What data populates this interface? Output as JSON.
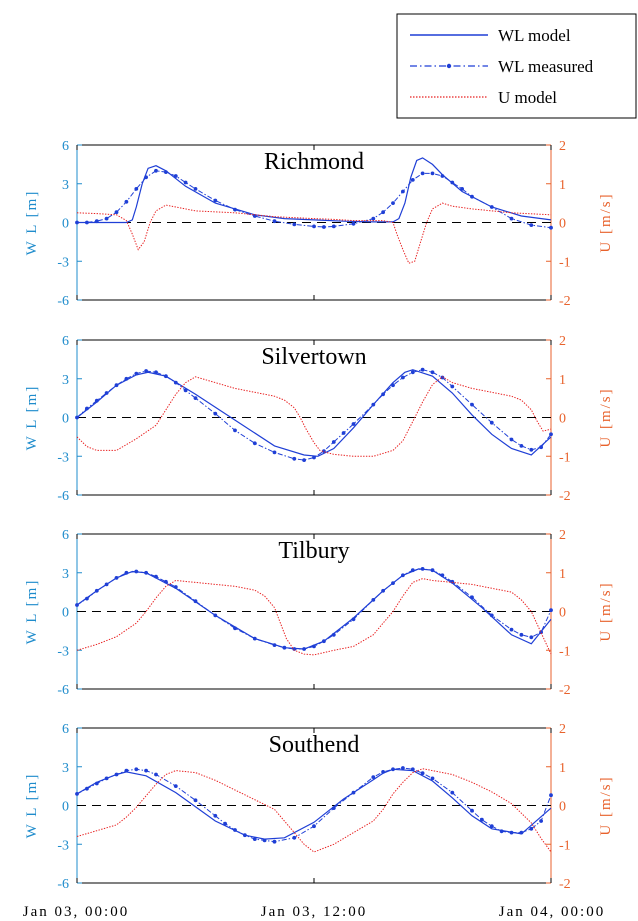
{
  "legend": {
    "wl_model": "WL model",
    "wl_measured": "WL measured",
    "u_model": "U model"
  },
  "colors": {
    "wl_axis": "#1f8ccc",
    "u_axis": "#e8622c",
    "wl_model": "#1f3fd6",
    "wl_measured": "#1f3fd6",
    "u_model": "#e82020",
    "zero_line": "#000000"
  },
  "x_tick_labels": [
    "Jan 03, 00:00",
    "Jan 03, 12:00",
    "Jan 04, 00:00"
  ],
  "chart_data": [
    {
      "type": "line",
      "title": "Richmond",
      "ylabel_left": "W L [m]",
      "ylabel_right": "U [m/s]",
      "ylim_left": [
        -6,
        6
      ],
      "yticks_left": [
        "6",
        "3",
        "0",
        "-3",
        "-6"
      ],
      "ylim_right": [
        -2,
        2
      ],
      "yticks_right": [
        "2",
        "1",
        "0",
        "-1",
        "-2"
      ],
      "xlim_hours": [
        0,
        24
      ],
      "series": [
        {
          "name": "WL model",
          "axis": "left",
          "x": [
            0,
            1.5,
            2.5,
            2.8,
            3.0,
            3.3,
            3.6,
            4.0,
            4.5,
            5.5,
            7,
            9,
            10.5,
            12,
            13.5,
            15,
            16.0,
            16.3,
            16.6,
            16.9,
            17.2,
            17.5,
            18.0,
            18.5,
            19.5,
            21,
            22.5,
            24
          ],
          "y": [
            0,
            0,
            0,
            0.2,
            1.2,
            3.0,
            4.2,
            4.4,
            4.0,
            2.8,
            1.5,
            0.6,
            0.3,
            0.2,
            0.1,
            0.05,
            0.05,
            0.3,
            1.5,
            3.5,
            4.8,
            5.0,
            4.5,
            3.7,
            2.4,
            1.2,
            0.5,
            0.2
          ]
        },
        {
          "name": "WL measured",
          "axis": "left",
          "x": [
            0,
            0.5,
            1,
            1.5,
            2,
            2.5,
            3,
            3.5,
            4,
            4.5,
            5,
            5.5,
            6,
            7,
            8,
            9,
            10,
            11,
            12,
            12.5,
            13,
            14,
            15,
            15.5,
            16,
            16.5,
            17,
            17.5,
            18,
            18.5,
            19,
            19.5,
            20,
            21,
            22,
            23,
            24
          ],
          "y": [
            0,
            0,
            0.1,
            0.3,
            0.8,
            1.6,
            2.6,
            3.5,
            4.0,
            3.9,
            3.6,
            3.1,
            2.6,
            1.7,
            1.0,
            0.5,
            0.1,
            -0.15,
            -0.3,
            -0.35,
            -0.3,
            -0.1,
            0.3,
            0.8,
            1.5,
            2.4,
            3.3,
            3.8,
            3.8,
            3.6,
            3.1,
            2.6,
            2.0,
            1.2,
            0.3,
            -0.2,
            -0.4
          ]
        },
        {
          "name": "U model",
          "axis": "right",
          "x": [
            0,
            1,
            2,
            2.5,
            2.8,
            3.1,
            3.4,
            3.7,
            4.0,
            4.5,
            5,
            6,
            8,
            10,
            12,
            13,
            14,
            15,
            15.5,
            16.0,
            16.2,
            16.5,
            16.8,
            17.1,
            17.4,
            17.7,
            18.0,
            18.5,
            19,
            20,
            22,
            24
          ],
          "y": [
            0.25,
            0.23,
            0.2,
            0.05,
            -0.3,
            -0.7,
            -0.5,
            0.0,
            0.3,
            0.45,
            0.4,
            0.3,
            0.25,
            0.15,
            0.1,
            0.08,
            0.05,
            0.05,
            0.05,
            0.0,
            -0.3,
            -0.7,
            -1.05,
            -1.0,
            -0.5,
            0.0,
            0.35,
            0.5,
            0.42,
            0.35,
            0.25,
            0.2
          ]
        }
      ]
    },
    {
      "type": "line",
      "title": "Silvertown",
      "ylabel_left": "W L [m]",
      "ylabel_right": "U [m/s]",
      "ylim_left": [
        -6,
        6
      ],
      "yticks_left": [
        "6",
        "3",
        "0",
        "-3",
        "-6"
      ],
      "ylim_right": [
        -2,
        2
      ],
      "yticks_right": [
        "2",
        "1",
        "0",
        "-1",
        "-2"
      ],
      "xlim_hours": [
        0,
        24
      ],
      "series": [
        {
          "name": "WL model",
          "axis": "left",
          "x": [
            0,
            1,
            2,
            3,
            3.6,
            4.5,
            6,
            8,
            10,
            11.5,
            12.2,
            13,
            14,
            15,
            16,
            16.6,
            17,
            18,
            19,
            20,
            21,
            22,
            23,
            24
          ],
          "y": [
            0,
            1.2,
            2.5,
            3.3,
            3.5,
            3.2,
            1.8,
            -0.2,
            -2.2,
            -2.9,
            -3.0,
            -2.4,
            -0.8,
            1.0,
            2.7,
            3.5,
            3.7,
            3.2,
            1.9,
            0.2,
            -1.3,
            -2.4,
            -2.9,
            -1.5
          ]
        },
        {
          "name": "WL measured",
          "axis": "left",
          "x": [
            0,
            0.5,
            1,
            1.5,
            2,
            2.5,
            3,
            3.5,
            4,
            4.5,
            5,
            5.5,
            6,
            7,
            8,
            9,
            10,
            11,
            11.5,
            12,
            12.5,
            13,
            13.5,
            14,
            15,
            15.5,
            16,
            16.5,
            17,
            17.5,
            18,
            18.5,
            19,
            20,
            21,
            22,
            22.5,
            23,
            23.5,
            24
          ],
          "y": [
            0,
            0.7,
            1.3,
            1.9,
            2.5,
            3.0,
            3.4,
            3.6,
            3.5,
            3.2,
            2.7,
            2.1,
            1.5,
            0.3,
            -1.0,
            -2.0,
            -2.7,
            -3.2,
            -3.3,
            -3.1,
            -2.6,
            -1.9,
            -1.2,
            -0.5,
            1.0,
            1.8,
            2.5,
            3.1,
            3.5,
            3.7,
            3.5,
            3.1,
            2.4,
            1.0,
            -0.4,
            -1.7,
            -2.2,
            -2.5,
            -2.3,
            -1.3
          ]
        },
        {
          "name": "U model",
          "axis": "right",
          "x": [
            0,
            0.5,
            1,
            2,
            3,
            4,
            4.5,
            5,
            5.5,
            6,
            7,
            8,
            9,
            10,
            10.5,
            11,
            11.3,
            11.6,
            12,
            12.3,
            12.6,
            13,
            14,
            15,
            16,
            16.5,
            17,
            17.5,
            18,
            18.5,
            19,
            20,
            21,
            22,
            22.5,
            23,
            23.3,
            23.6,
            24
          ],
          "y": [
            -0.5,
            -0.75,
            -0.85,
            -0.85,
            -0.55,
            -0.2,
            0.2,
            0.6,
            0.9,
            1.05,
            0.9,
            0.75,
            0.65,
            0.55,
            0.45,
            0.25,
            0.0,
            -0.3,
            -0.65,
            -0.85,
            -0.9,
            -0.95,
            -1.0,
            -1.0,
            -0.85,
            -0.6,
            -0.1,
            0.4,
            0.85,
            1.05,
            0.9,
            0.75,
            0.65,
            0.55,
            0.45,
            0.2,
            -0.1,
            -0.35,
            -0.3
          ]
        }
      ]
    },
    {
      "type": "line",
      "title": "Tilbury",
      "ylabel_left": "W L [m]",
      "ylabel_right": "U [m/s]",
      "ylim_left": [
        -6,
        6
      ],
      "yticks_left": [
        "6",
        "3",
        "0",
        "-3",
        "-6"
      ],
      "ylim_right": [
        -2,
        2
      ],
      "yticks_right": [
        "2",
        "1",
        "0",
        "-1",
        "-2"
      ],
      "xlim_hours": [
        0,
        24
      ],
      "series": [
        {
          "name": "WL model",
          "axis": "left",
          "x": [
            0,
            1,
            2,
            2.8,
            3.5,
            5,
            7,
            9,
            10.5,
            11.5,
            12.5,
            14,
            15.5,
            16.5,
            17.3,
            18,
            19,
            20.5,
            22,
            23,
            24
          ],
          "y": [
            0.5,
            1.6,
            2.6,
            3.1,
            3.0,
            1.8,
            -0.3,
            -2.1,
            -2.8,
            -2.9,
            -2.3,
            -0.5,
            1.6,
            2.8,
            3.3,
            3.2,
            2.2,
            0.3,
            -1.8,
            -2.5,
            -0.6
          ]
        },
        {
          "name": "WL measured",
          "axis": "left",
          "x": [
            0,
            0.5,
            1,
            1.5,
            2,
            2.5,
            3,
            3.5,
            4,
            4.5,
            5,
            6,
            7,
            8,
            9,
            10,
            10.5,
            11,
            11.5,
            12,
            12.5,
            13,
            14,
            15,
            15.5,
            16,
            16.5,
            17,
            17.5,
            18,
            18.5,
            19,
            20,
            21,
            22,
            22.5,
            23,
            23.5,
            24
          ],
          "y": [
            0.5,
            1.0,
            1.6,
            2.1,
            2.6,
            3.0,
            3.1,
            3.0,
            2.7,
            2.3,
            1.9,
            0.8,
            -0.3,
            -1.3,
            -2.1,
            -2.6,
            -2.8,
            -2.9,
            -2.9,
            -2.7,
            -2.3,
            -1.8,
            -0.6,
            0.9,
            1.6,
            2.2,
            2.8,
            3.2,
            3.3,
            3.2,
            2.8,
            2.3,
            1.1,
            -0.3,
            -1.4,
            -1.8,
            -2.0,
            -1.6,
            0.1
          ]
        },
        {
          "name": "U model",
          "axis": "right",
          "x": [
            0,
            1,
            2,
            3,
            3.5,
            4,
            4.5,
            5,
            6,
            7,
            8,
            9,
            9.5,
            10,
            10.3,
            10.6,
            11,
            11.5,
            12,
            13,
            14,
            15,
            15.5,
            16,
            16.5,
            17,
            17.5,
            18,
            19,
            20,
            21,
            22,
            22.5,
            23,
            23.5,
            24
          ],
          "y": [
            -1.0,
            -0.85,
            -0.65,
            -0.3,
            0.0,
            0.35,
            0.65,
            0.8,
            0.75,
            0.7,
            0.65,
            0.55,
            0.4,
            0.1,
            -0.3,
            -0.7,
            -1.0,
            -1.1,
            -1.12,
            -1.0,
            -0.9,
            -0.6,
            -0.3,
            0.0,
            0.4,
            0.75,
            0.85,
            0.8,
            0.75,
            0.7,
            0.6,
            0.5,
            0.3,
            0.0,
            -0.55,
            -1.1
          ]
        }
      ]
    },
    {
      "type": "line",
      "title": "Southend",
      "ylabel_left": "W L [m]",
      "ylabel_right": "U [m/s]",
      "ylim_left": [
        -6,
        6
      ],
      "yticks_left": [
        "6",
        "3",
        "0",
        "-3",
        "-6"
      ],
      "ylim_right": [
        -2,
        2
      ],
      "yticks_right": [
        "2",
        "1",
        "0",
        "-1",
        "-2"
      ],
      "xlim_hours": [
        0,
        24
      ],
      "series": [
        {
          "name": "WL model",
          "axis": "left",
          "x": [
            0,
            1,
            2,
            2.5,
            3.5,
            5,
            7,
            8.5,
            9.5,
            10.5,
            12,
            13.5,
            15,
            15.5,
            16,
            17,
            18,
            19,
            20,
            21,
            22.5,
            24
          ],
          "y": [
            0.9,
            1.8,
            2.4,
            2.6,
            2.3,
            1.0,
            -1.2,
            -2.3,
            -2.6,
            -2.5,
            -1.3,
            0.5,
            2.0,
            2.5,
            2.8,
            2.7,
            1.9,
            0.6,
            -0.8,
            -1.8,
            -2.2,
            -0.2
          ]
        },
        {
          "name": "WL measured",
          "axis": "left",
          "x": [
            0,
            0.5,
            1,
            1.5,
            2,
            2.5,
            3,
            3.5,
            4,
            5,
            6,
            7,
            7.5,
            8,
            8.5,
            9,
            9.5,
            10,
            11,
            12,
            13,
            14,
            15,
            15.5,
            16,
            16.5,
            17,
            17.5,
            18,
            19,
            20,
            20.5,
            21,
            21.5,
            22,
            22.5,
            23,
            23.5,
            24
          ],
          "y": [
            0.9,
            1.3,
            1.7,
            2.1,
            2.4,
            2.7,
            2.8,
            2.7,
            2.4,
            1.5,
            0.4,
            -0.8,
            -1.4,
            -1.9,
            -2.3,
            -2.6,
            -2.7,
            -2.8,
            -2.5,
            -1.6,
            -0.2,
            1.0,
            2.2,
            2.6,
            2.8,
            2.9,
            2.8,
            2.5,
            2.1,
            1.0,
            -0.4,
            -1.1,
            -1.6,
            -2.0,
            -2.1,
            -2.1,
            -1.8,
            -1.2,
            0.8
          ]
        },
        {
          "name": "U model",
          "axis": "right",
          "x": [
            0,
            1,
            2,
            2.5,
            3,
            3.5,
            4,
            4.5,
            5,
            6,
            7,
            8,
            9,
            10,
            10.5,
            11,
            11.5,
            12,
            13,
            14,
            15,
            15.5,
            16,
            16.5,
            17,
            17.5,
            18,
            19,
            20,
            21,
            22,
            23,
            23.5,
            24
          ],
          "y": [
            -0.8,
            -0.65,
            -0.5,
            -0.3,
            -0.05,
            0.25,
            0.55,
            0.8,
            0.9,
            0.85,
            0.65,
            0.4,
            0.15,
            -0.1,
            -0.4,
            -0.7,
            -1.0,
            -1.2,
            -1.0,
            -0.7,
            -0.4,
            -0.1,
            0.3,
            0.6,
            0.85,
            0.95,
            0.9,
            0.8,
            0.6,
            0.35,
            0.05,
            -0.45,
            -0.85,
            -1.2
          ]
        }
      ]
    }
  ]
}
